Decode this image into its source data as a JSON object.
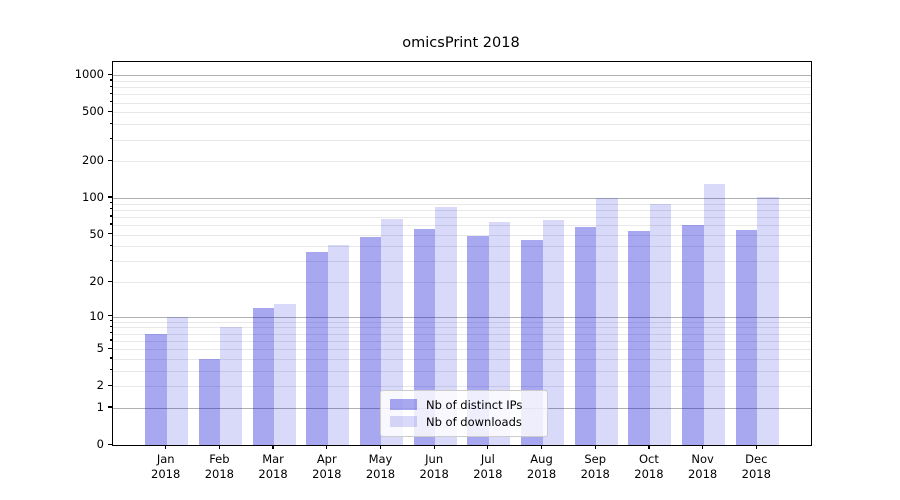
{
  "title": "omicsPrint 2018",
  "chart_data": {
    "type": "bar",
    "title": "omicsPrint 2018",
    "scale": "log10(1+y)",
    "grid": true,
    "legend_position": "lower-center",
    "categories": [
      "Jan 2018",
      "Feb 2018",
      "Mar 2018",
      "Apr 2018",
      "May 2018",
      "Jun 2018",
      "Jul 2018",
      "Aug 2018",
      "Sep 2018",
      "Oct 2018",
      "Nov 2018",
      "Dec 2018"
    ],
    "x_tick_months": [
      "Jan",
      "Feb",
      "Mar",
      "Apr",
      "May",
      "Jun",
      "Jul",
      "Aug",
      "Sep",
      "Oct",
      "Nov",
      "Dec"
    ],
    "x_tick_year": "2018",
    "series": [
      {
        "name": "Nb of distinct IPs",
        "color": "rgba(0,0,215,0.34)",
        "values": [
          7,
          4,
          12,
          36,
          48,
          56,
          49,
          45,
          58,
          54,
          60,
          55
        ]
      },
      {
        "name": "Nb of downloads",
        "color": "rgba(0,0,215,0.15)",
        "values": [
          10,
          8,
          13,
          41,
          67,
          84,
          64,
          66,
          100,
          90,
          130,
          102
        ]
      }
    ],
    "y_ticks": [
      0,
      1,
      2,
      5,
      10,
      20,
      50,
      100,
      200,
      500,
      1000
    ],
    "y_major_gridlines": [
      1,
      10,
      100,
      1000
    ],
    "y_minor_gridlines": [
      2,
      3,
      4,
      5,
      6,
      7,
      8,
      9,
      20,
      30,
      40,
      50,
      60,
      70,
      80,
      90,
      200,
      300,
      400,
      500,
      600,
      700,
      800,
      900
    ],
    "ylim": [
      0,
      1280
    ],
    "xlabel": "",
    "ylabel": "",
    "colors": {
      "bar_dark": "#a8a8f0",
      "bar_light": "#d8d8f7",
      "grid_major": "#b0b0b0",
      "grid_minor": "#e8e8e8",
      "spine": "#000000"
    }
  }
}
